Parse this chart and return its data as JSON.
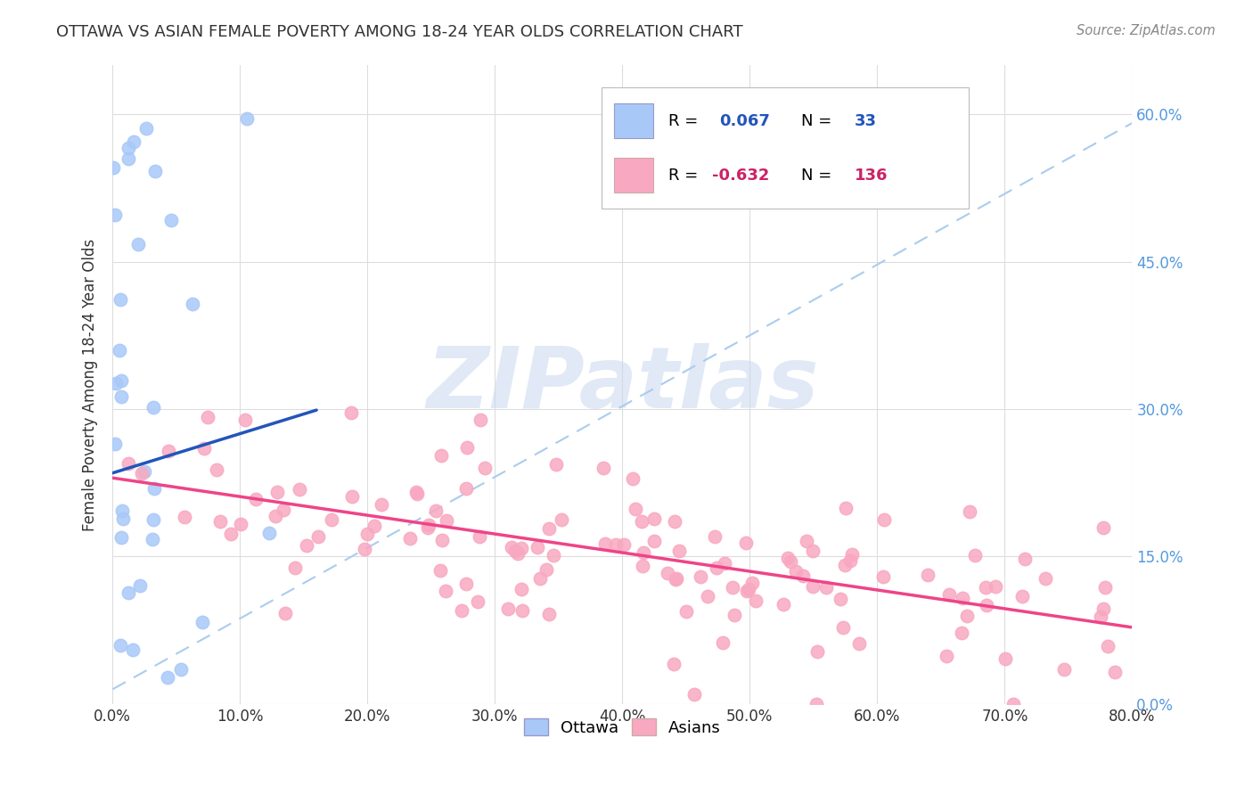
{
  "title": "OTTAWA VS ASIAN FEMALE POVERTY AMONG 18-24 YEAR OLDS CORRELATION CHART",
  "source": "Source: ZipAtlas.com",
  "xlabel_ticks": [
    "0.0%",
    "10.0%",
    "20.0%",
    "30.0%",
    "40.0%",
    "50.0%",
    "60.0%",
    "70.0%",
    "80.0%"
  ],
  "ylabel": "Female Poverty Among 18-24 Year Olds",
  "ylabel_ticks": [
    "0.0%",
    "15.0%",
    "30.0%",
    "45.0%",
    "60.0%"
  ],
  "xlim": [
    0.0,
    0.8
  ],
  "ylim": [
    0.0,
    0.65
  ],
  "ottawa_R": 0.067,
  "ottawa_N": 33,
  "asians_R": -0.632,
  "asians_N": 136,
  "ottawa_color": "#a8c8f8",
  "asians_color": "#f8a8c0",
  "ottawa_line_color": "#2255bb",
  "asians_line_color": "#ee4488",
  "dashed_line_color": "#aaccee",
  "background_color": "#ffffff",
  "grid_color": "#dddddd",
  "title_color": "#333333",
  "axis_tick_color_x": "#333333",
  "axis_tick_color_y": "#5599dd",
  "watermark": "ZIPatlas",
  "watermark_color": "#c8d8ee",
  "legend_R_color": "#000000",
  "legend_val_ottawa_color": "#2255bb",
  "legend_val_asians_color": "#cc2266",
  "source_color": "#888888"
}
